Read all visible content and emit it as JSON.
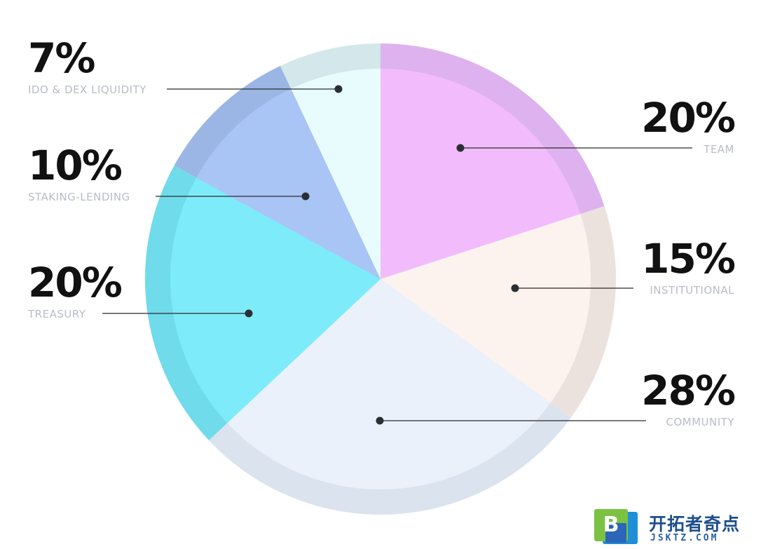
{
  "chart_data": {
    "type": "pie",
    "start_angle_deg": 0,
    "direction": "clockwise",
    "slices": [
      {
        "label": "TEAM",
        "value_text": "20%",
        "value": 20,
        "color": "#f2bcfc",
        "ring": "#deb2ee"
      },
      {
        "label": "INSTITUTIONAL",
        "value_text": "15%",
        "value": 15,
        "color": "#fcf2ee",
        "ring": "#ece2dd"
      },
      {
        "label": "COMMUNITY",
        "value_text": "28%",
        "value": 28,
        "color": "#eaf1fb",
        "ring": "#dbe3ee"
      },
      {
        "label": "TREASURY",
        "value_text": "20%",
        "value": 20,
        "color": "#7eebfa",
        "ring": "#70dbea"
      },
      {
        "label": "STAKING-LENDING",
        "value_text": "10%",
        "value": 10,
        "color": "#a9c5f5",
        "ring": "#9bb6e5"
      },
      {
        "label": "IDO & DEX LIQUIDITY",
        "value_text": "7%",
        "value": 7,
        "color": "#e8fcfd",
        "ring": "#d4e7eb"
      }
    ]
  },
  "watermark": {
    "name": "开拓者奇点",
    "domain": "JSKTZ.COM",
    "mark_letter": "B"
  }
}
